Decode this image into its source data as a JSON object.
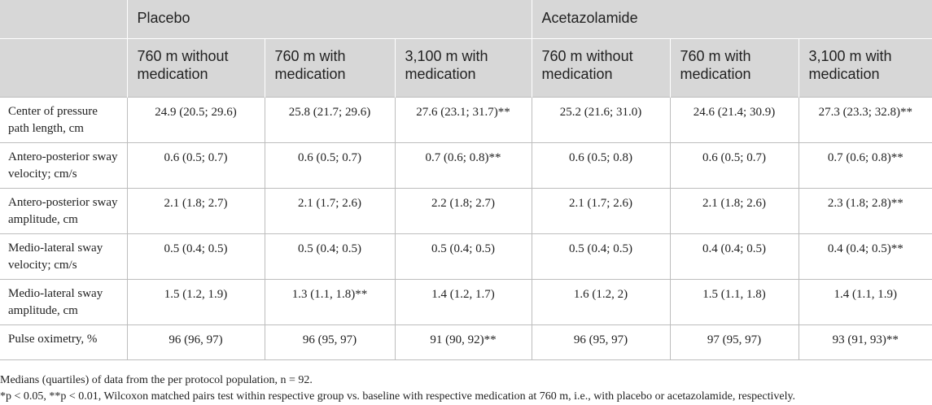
{
  "groups": [
    "",
    "Placebo",
    "Acetazolamide"
  ],
  "columns": [
    "",
    "760 m without medication",
    "760 m with medication",
    "3,100 m with medication",
    "760 m without medication",
    "760 m with medication",
    "3,100 m with medication"
  ],
  "rows": [
    {
      "label": "Center of pressure path length, cm",
      "values": [
        "24.9 (20.5; 29.6)",
        "25.8 (21.7; 29.6)",
        "27.6 (23.1; 31.7)**",
        "25.2 (21.6; 31.0)",
        "24.6 (21.4; 30.9)",
        "27.3 (23.3; 32.8)**"
      ]
    },
    {
      "label": "Antero-posterior sway velocity; cm/s",
      "values": [
        "0.6 (0.5; 0.7)",
        "0.6 (0.5; 0.7)",
        "0.7 (0.6; 0.8)**",
        "0.6 (0.5; 0.8)",
        "0.6 (0.5; 0.7)",
        "0.7 (0.6; 0.8)**"
      ]
    },
    {
      "label": "Antero-posterior sway amplitude, cm",
      "values": [
        "2.1 (1.8; 2.7)",
        "2.1 (1.7; 2.6)",
        "2.2 (1.8; 2.7)",
        "2.1 (1.7; 2.6)",
        "2.1 (1.8; 2.6)",
        "2.3 (1.8; 2.8)**"
      ]
    },
    {
      "label": "Medio-lateral sway velocity; cm/s",
      "values": [
        "0.5 (0.4; 0.5)",
        "0.5 (0.4; 0.5)",
        "0.5 (0.4; 0.5)",
        "0.5 (0.4; 0.5)",
        "0.4 (0.4; 0.5)",
        "0.4 (0.4; 0.5)**"
      ]
    },
    {
      "label": "Medio-lateral sway amplitude, cm",
      "values": [
        "1.5 (1.2, 1.9)",
        "1.3 (1.1, 1.8)**",
        "1.4 (1.2, 1.7)",
        "1.6 (1.2, 2)",
        "1.5 (1.1, 1.8)",
        "1.4 (1.1, 1.9)"
      ]
    },
    {
      "label": "Pulse oximetry, %",
      "values": [
        "96 (96, 97)",
        "96 (95, 97)",
        "91 (90, 92)**",
        "96 (95, 97)",
        "97 (95, 97)",
        "93 (91, 93)**"
      ]
    }
  ],
  "footnotes": [
    "Medians (quartiles) of data from the per protocol population, n = 92.",
    "*p < 0.05, **p < 0.01, Wilcoxon matched pairs test within respective group vs. baseline with respective medication at 760 m, i.e., with placebo or acetazolamide, respectively."
  ]
}
